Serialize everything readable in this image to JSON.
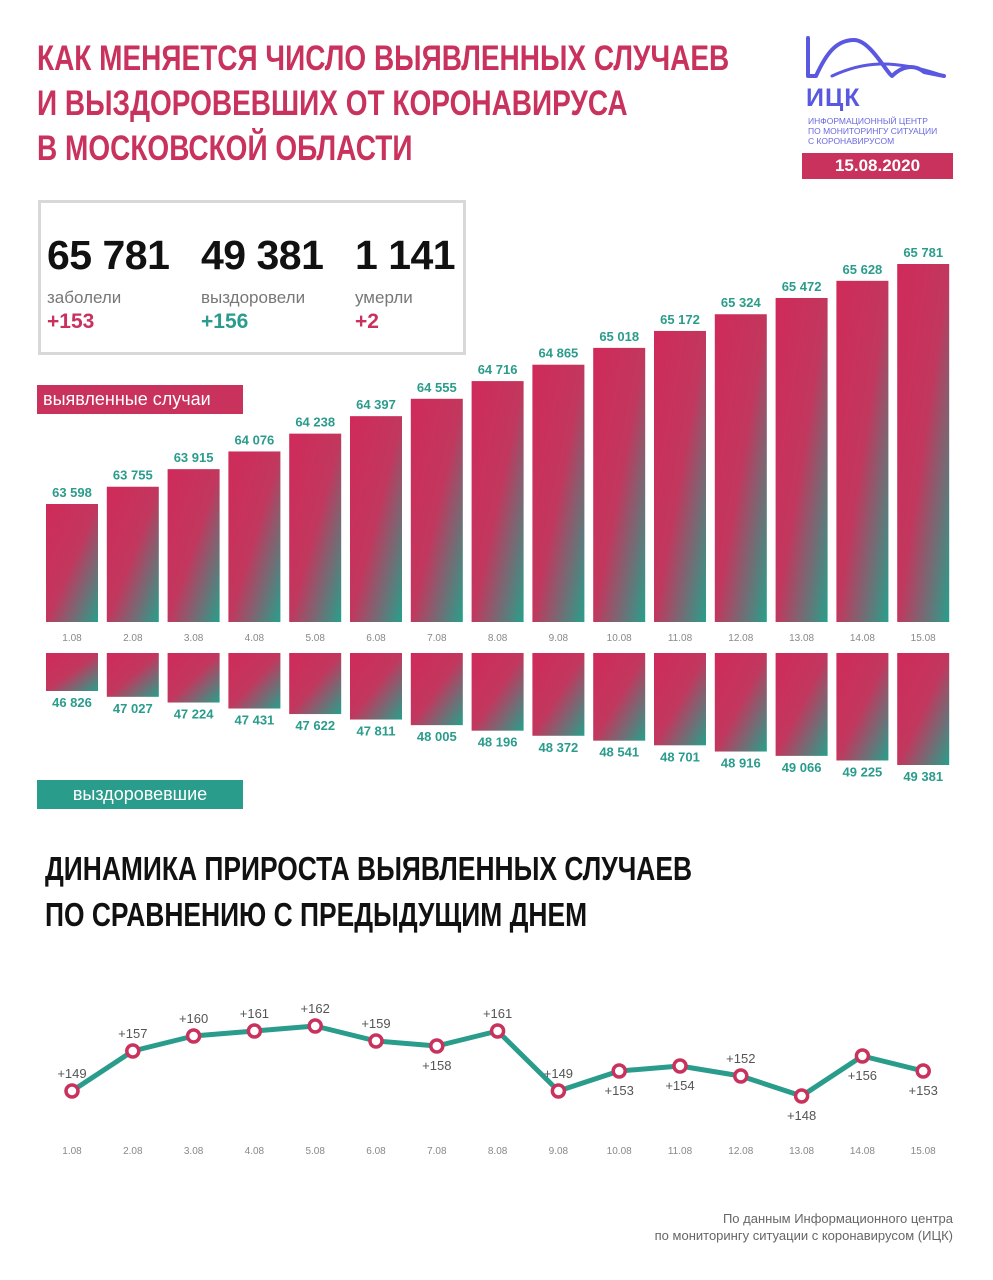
{
  "title": [
    "КАК МЕНЯЕТСЯ ЧИСЛО ВЫЯВЛЕННЫХ СЛУЧАЕВ",
    "И ВЫЗДОРОВЕВШИХ ОТ КОРОНАВИРУСА",
    "В МОСКОВСКОЙ ОБЛАСТИ"
  ],
  "logo": {
    "abbr": "ИЦК",
    "subtitle": [
      "ИНФОРМАЦИОННЫЙ ЦЕНТР",
      "ПО МОНИТОРИНГУ СИТУАЦИИ",
      "С КОРОНАВИРУСОМ"
    ]
  },
  "date": "15.08.2020",
  "stats": [
    {
      "value": "65 781",
      "label": "заболели",
      "delta": "+153"
    },
    {
      "value": "49 381",
      "label": "выздоровели",
      "delta": "+156"
    },
    {
      "value": "1 141",
      "label": "умерли",
      "delta": "+2"
    }
  ],
  "legend": {
    "cases": "выявленные случаи",
    "recovered": "выздоровевшие"
  },
  "subtitle": [
    "ДИНАМИКА ПРИРОСТА ВЫЯВЛЕННЫХ СЛУЧАЕВ",
    "ПО СРАВНЕНИЮ С ПРЕДЫДУЩИМ ДНЕМ"
  ],
  "source": [
    "По данным Информационного центра",
    "по мониторингу ситуации с коронавирусом (ИЦК)"
  ],
  "colors": {
    "accent": "#c8325d",
    "teal": "#2a9c8c",
    "logo": "#5a58e0"
  },
  "chart_data": [
    {
      "type": "bar",
      "categories": [
        "1.08",
        "2.08",
        "3.08",
        "4.08",
        "5.08",
        "6.08",
        "7.08",
        "8.08",
        "9.08",
        "10.08",
        "11.08",
        "12.08",
        "13.08",
        "14.08",
        "15.08"
      ],
      "series": [
        {
          "name": "выявленные случаи",
          "values": [
            63598,
            63755,
            63915,
            64076,
            64238,
            64397,
            64555,
            64716,
            64865,
            65018,
            65172,
            65324,
            65472,
            65628,
            65781
          ],
          "labels": [
            "63 598",
            "63 755",
            "63 915",
            "64 076",
            "64 238",
            "64 397",
            "64 555",
            "64 716",
            "64 865",
            "65 018",
            "65 172",
            "65 324",
            "65 472",
            "65 628",
            "65 781"
          ]
        },
        {
          "name": "выздоровевшие",
          "values": [
            46826,
            47027,
            47224,
            47431,
            47622,
            47811,
            48005,
            48196,
            48372,
            48541,
            48701,
            48916,
            49066,
            49225,
            49381
          ],
          "labels": [
            "46 826",
            "47 027",
            "47 224",
            "47 431",
            "47 622",
            "47 811",
            "48 005",
            "48 196",
            "48 372",
            "48 541",
            "48 701",
            "48 916",
            "49 066",
            "49 225",
            "49 381"
          ]
        }
      ]
    },
    {
      "type": "line",
      "categories": [
        "1.08",
        "2.08",
        "3.08",
        "4.08",
        "5.08",
        "6.08",
        "7.08",
        "8.08",
        "9.08",
        "10.08",
        "11.08",
        "12.08",
        "13.08",
        "14.08",
        "15.08"
      ],
      "values": [
        149,
        157,
        160,
        161,
        162,
        159,
        158,
        161,
        149,
        153,
        154,
        152,
        148,
        156,
        153
      ],
      "labels": [
        "+149",
        "+157",
        "+160",
        "+161",
        "+162",
        "+159",
        "+158",
        "+161",
        "+149",
        "+153",
        "+154",
        "+152",
        "+148",
        "+156",
        "+153"
      ],
      "label_position": [
        "above",
        "above",
        "above",
        "above",
        "above",
        "above",
        "below",
        "above",
        "above",
        "below",
        "below",
        "above",
        "below",
        "below",
        "below"
      ]
    }
  ]
}
